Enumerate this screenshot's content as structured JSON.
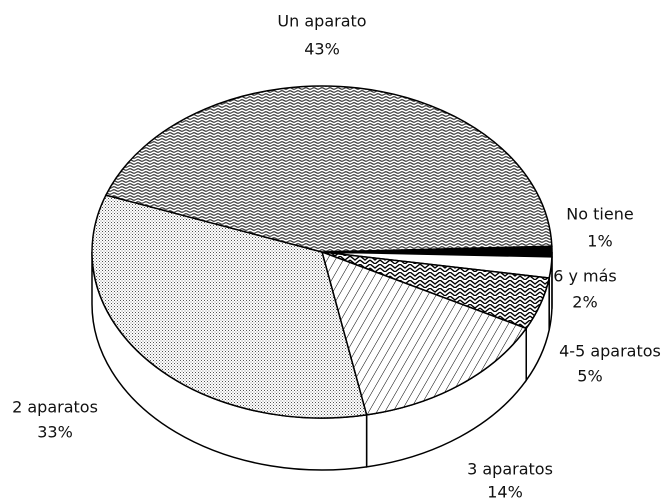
{
  "chart_data": {
    "type": "pie",
    "categories": [
      "No tiene",
      "6 y más",
      "4-5 aparatos",
      "3 aparatos",
      "2 aparatos",
      "Un aparato"
    ],
    "values": [
      1,
      2,
      5,
      14,
      33,
      43
    ],
    "value_labels": [
      "1%",
      "2%",
      "5%",
      "14%",
      "33%",
      "43%"
    ],
    "colors": [
      "#000000",
      "#ffffff",
      "#9a9a9a",
      "#e8e8e8",
      "#d6d6d6",
      "#a8a8a8"
    ]
  }
}
